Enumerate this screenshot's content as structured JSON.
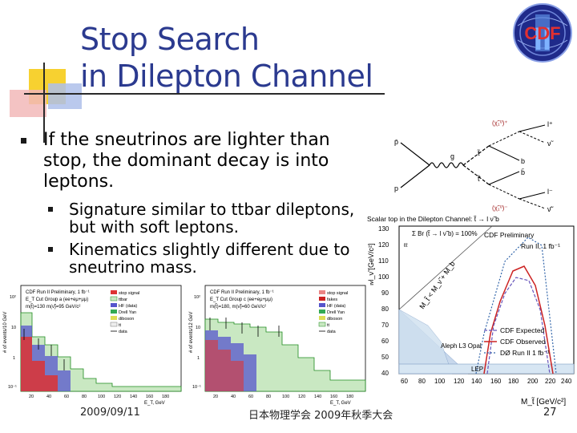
{
  "slide": {
    "title_line1": "Stop Search",
    "title_line2": "in Dilepton Channel",
    "logo_text": "CDF",
    "logo_roman": "II",
    "bullet_main": "If the sneutrinos are lighter than stop, the dominant decay is into leptons.",
    "sub_bullets": [
      "Signature similar to ttbar dileptons, but with soft leptons.",
      "Kinematics slightly different due to sneutrino mass."
    ],
    "footer": {
      "date": "2009/09/11",
      "conference": "日本物理学会 2009年秋季大会",
      "page": "27"
    }
  },
  "feynman": {
    "labels": {
      "p": "p",
      "pbar": "p̄",
      "g": "g",
      "top_state": "(χ̃₁⁰)⁺",
      "bottom_state": "(χ̃₁⁰)⁻",
      "stop": "t̃",
      "stopbar": "t̃̄",
      "b": "b",
      "bbar": "b̄",
      "l_plus": "l⁺",
      "l_minus": "l⁻",
      "nu": "ν̃",
      "nubar": "ν̃̄"
    }
  },
  "exclusion_plot": {
    "header": "Scalar top in the Dilepton Channel: t̃ → l ν̃ b",
    "annot_br": "Σ Br (t̃ → l ν̃ b) = 100%",
    "annot_ll": "ℓℓ",
    "annot_prelim": "CDF Preliminary",
    "annot_run": "Run II, 1 fb⁻¹",
    "diag_label": "M_t̃ < M_ν̃ + M_b",
    "lep_label": "LEP",
    "aleph_label": "Aleph L3 Opal",
    "legend": [
      "CDF Expected",
      "CDF Observed",
      "DØ Run II 1 fb⁻¹"
    ],
    "xlabel": "M_t̃ [GeV/c²]",
    "ylabel": "M_ν̃ [GeV/c²]",
    "x_ticks": [
      "60",
      "80",
      "100",
      "120",
      "140",
      "160",
      "180",
      "200",
      "220",
      "240"
    ],
    "y_ticks": [
      "40",
      "50",
      "60",
      "70",
      "80",
      "90",
      "100",
      "110",
      "120",
      "130"
    ]
  },
  "hist_left": {
    "title": "CDF Run II Preliminary, 1 fb⁻¹",
    "subtitle": "E_T Cut Group a (ee+eμ+μμ)",
    "masses": "m(t̃)=130  m(ν̃)=95 GeV/c²",
    "ylabel": "# of events/10 GeV",
    "xlabel": "E_T, GeV",
    "legend": [
      "stop signal",
      "ttbar",
      "HF (data)",
      "Drell Yan",
      "diboson",
      "tt",
      "data"
    ],
    "x_ticks": [
      "20",
      "40",
      "60",
      "80",
      "100",
      "120",
      "140",
      "160",
      "180"
    ],
    "y_ticks": [
      "10²",
      "10",
      "1",
      "10⁻¹"
    ]
  },
  "hist_right": {
    "title": "CDF Run II Preliminary, 1 fb⁻¹",
    "subtitle": "E_T Cut Group c (ee+eμ+μμ)",
    "masses": "m(t̃)=180, m(ν̃)=60 GeV/c²",
    "ylabel": "# of events/12 GeV",
    "xlabel": "E_T, GeV",
    "legend": [
      "stop signal",
      "fakes",
      "HF (data)",
      "Drell Yan",
      "diboson",
      "tt",
      "data"
    ],
    "x_ticks": [
      "20",
      "40",
      "60",
      "80",
      "100",
      "120",
      "140",
      "160",
      "180"
    ],
    "y_ticks": [
      "10²",
      "10",
      "1",
      "10⁻¹"
    ]
  }
}
